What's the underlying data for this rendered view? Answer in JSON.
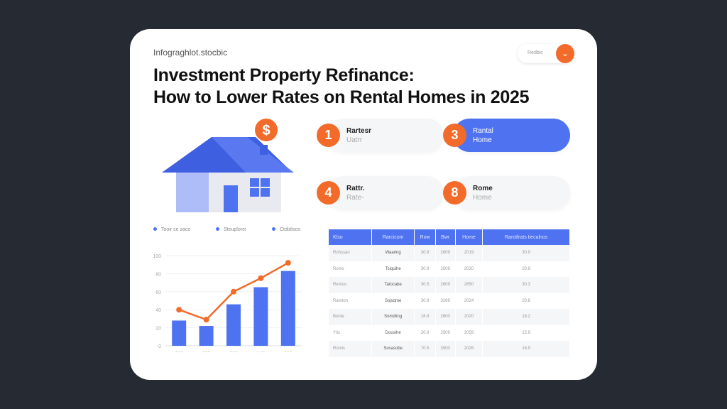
{
  "brand": "Infograghlot.stocbic",
  "menu": {
    "label": "Redbic",
    "icon": "chevron-down-icon"
  },
  "title": {
    "line1": "Investment Property Refinance:",
    "line2": "How to Lower Rates on Rental Homes in 2025"
  },
  "colors": {
    "accent": "#4f73f0",
    "orange": "#f26b2a",
    "background": "#262a33"
  },
  "steps": [
    {
      "num": "1",
      "title": "Rartesr",
      "sub": "Uatrr",
      "active": false
    },
    {
      "num": "3",
      "title": "Rantal",
      "sub": "Home",
      "active": true
    },
    {
      "num": "4",
      "title": "Rattr.",
      "sub": "Rate-",
      "active": false
    },
    {
      "num": "8",
      "title": "Rome",
      "sub": "Home",
      "active": false
    }
  ],
  "legend": [
    "Tooir ce zaco",
    "Steuplorei",
    "Ctdtdisos"
  ],
  "chart_data": {
    "type": "bar",
    "categories": [
      "166",
      "190",
      "166",
      "140",
      "156"
    ],
    "series": [
      {
        "type": "bar",
        "values": [
          28,
          22,
          46,
          65,
          83
        ]
      },
      {
        "type": "line",
        "values": [
          40,
          29,
          60,
          75,
          92
        ]
      }
    ],
    "yticks": [
      "0",
      "20",
      "40",
      "60",
      "80",
      "100"
    ],
    "ylim": [
      0,
      100
    ],
    "grid": true
  },
  "table": {
    "headers": [
      "Klso",
      "Rarcicom",
      "Row",
      "Bwr",
      "Home",
      "Rarotfrats tiecalnos"
    ],
    "rows": [
      [
        "Rohssan",
        "Waaring",
        "30.9",
        "2609",
        "2019",
        "30.9"
      ],
      [
        "Roms",
        "Tsiquihe",
        "30.9",
        "2509",
        "2020",
        "20.9"
      ],
      [
        "Remos",
        "Tatocabe",
        "30.5",
        "2609",
        "2650",
        "30.3"
      ],
      [
        "Ramton",
        "Sojsqme",
        "30.9",
        "3269",
        "2024",
        "20.8"
      ],
      [
        "Bonte",
        "Somdiing",
        "18.9",
        "2600",
        "2020",
        "18.2"
      ],
      [
        "Ytis",
        "Dousihe",
        "20.9",
        "2509",
        "2059",
        "15.9"
      ],
      [
        "Romis",
        "Sosasobe",
        "70.5",
        "3500",
        "2026",
        "16.9"
      ]
    ]
  }
}
